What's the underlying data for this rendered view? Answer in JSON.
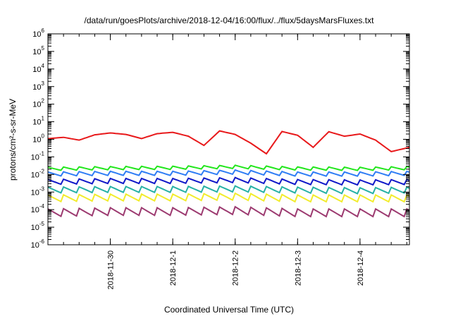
{
  "chart_data": {
    "type": "line",
    "title": "/data/run/goesPlots/archive/2018-12-04/16:00/flux/../flux/5daysMarsFluxes.txt",
    "xlabel": "Coordinated Universal Time (UTC)",
    "ylabel": "protons/cm²-s-sr-MeV",
    "yscale": "log",
    "ylim": [
      1e-06,
      1000000.0
    ],
    "xlim": [
      "2018-11-29 00:00",
      "2018-12-04 19:00"
    ],
    "grid": false,
    "legend": "none",
    "y_ticks": [
      {
        "base": "10",
        "exp": "6"
      },
      {
        "base": "10",
        "exp": "5"
      },
      {
        "base": "10",
        "exp": "4"
      },
      {
        "base": "10",
        "exp": "3"
      },
      {
        "base": "10",
        "exp": "2"
      },
      {
        "base": "10",
        "exp": "1"
      },
      {
        "base": "10",
        "exp": "0"
      },
      {
        "base": "10",
        "exp": "-1"
      },
      {
        "base": "10",
        "exp": "-2"
      },
      {
        "base": "10",
        "exp": "-3"
      },
      {
        "base": "10",
        "exp": "-4"
      },
      {
        "base": "10",
        "exp": "-5"
      },
      {
        "base": "10",
        "exp": "-6"
      }
    ],
    "x_ticks": [
      "2018-11-30",
      "2018-12-1",
      "2018-12-2",
      "2018-12-3",
      "2018-12-4"
    ],
    "series": [
      {
        "color": "#e8191b",
        "x": [
          "2018-11-29 00:00",
          "2018-11-29 06:00",
          "2018-11-29 12:00",
          "2018-11-29 18:00",
          "2018-11-30 00:00",
          "2018-11-30 06:00",
          "2018-11-30 12:00",
          "2018-11-30 18:00",
          "2018-12-01 00:00",
          "2018-12-01 06:00",
          "2018-12-01 12:00",
          "2018-12-01 18:00",
          "2018-12-02 00:00",
          "2018-12-02 06:00",
          "2018-12-02 12:00",
          "2018-12-02 18:00",
          "2018-12-03 00:00",
          "2018-12-03 06:00",
          "2018-12-03 12:00",
          "2018-12-03 18:00",
          "2018-12-04 00:00",
          "2018-12-04 06:00",
          "2018-12-04 12:00",
          "2018-12-04 19:00"
        ],
        "values": [
          1.1,
          1.3,
          0.9,
          1.8,
          2.3,
          1.9,
          1.1,
          2.1,
          2.5,
          1.5,
          0.45,
          3.0,
          1.9,
          0.6,
          0.15,
          2.8,
          1.7,
          0.35,
          2.7,
          1.5,
          2.0,
          0.9,
          0.2,
          0.35
        ]
      },
      {
        "color": "#22e61c",
        "x": [
          "2018-11-29 00:00",
          "2018-11-30 00:00",
          "2018-12-01 00:00",
          "2018-12-02 00:00",
          "2018-12-03 00:00",
          "2018-12-04 00:00",
          "2018-12-04 19:00"
        ],
        "values": [
          0.02,
          0.022,
          0.023,
          0.026,
          0.021,
          0.02,
          0.022
        ]
      },
      {
        "color": "#2f7df5",
        "x": [
          "2018-11-29 00:00",
          "2018-11-30 00:00",
          "2018-12-01 00:00",
          "2018-12-02 00:00",
          "2018-12-03 00:00",
          "2018-12-04 00:00",
          "2018-12-04 19:00"
        ],
        "values": [
          0.01,
          0.011,
          0.011,
          0.013,
          0.01,
          0.01,
          0.011
        ]
      },
      {
        "color": "#1018c8",
        "x": [
          "2018-11-29 00:00",
          "2018-11-30 00:00",
          "2018-12-01 00:00",
          "2018-12-02 00:00",
          "2018-12-03 00:00",
          "2018-12-04 00:00",
          "2018-12-04 19:00"
        ],
        "values": [
          0.0035,
          0.004,
          0.004,
          0.0045,
          0.0035,
          0.0033,
          0.0035
        ]
      },
      {
        "color": "#26b1a5",
        "x": [
          "2018-11-29 00:00",
          "2018-11-30 00:00",
          "2018-12-01 00:00",
          "2018-12-02 00:00",
          "2018-12-03 00:00",
          "2018-12-04 00:00",
          "2018-12-04 19:00"
        ],
        "values": [
          0.0012,
          0.0013,
          0.0013,
          0.0014,
          0.0012,
          0.0011,
          0.0012
        ]
      },
      {
        "color": "#f2ec2c",
        "x": [
          "2018-11-29 00:00",
          "2018-11-30 00:00",
          "2018-12-01 00:00",
          "2018-12-02 00:00",
          "2018-12-03 00:00",
          "2018-12-04 00:00",
          "2018-12-04 19:00"
        ],
        "values": [
          0.0004,
          0.00045,
          0.00045,
          0.0005,
          0.0004,
          0.0004,
          0.0004
        ]
      },
      {
        "color": "#9c3a70",
        "x": [
          "2018-11-29 00:00",
          "2018-11-30 00:00",
          "2018-12-01 00:00",
          "2018-12-02 00:00",
          "2018-12-03 00:00",
          "2018-12-04 00:00",
          "2018-12-04 19:00"
        ],
        "values": [
          6e-05,
          7e-05,
          7e-05,
          8e-05,
          6e-05,
          6e-05,
          6e-05
        ]
      }
    ]
  }
}
